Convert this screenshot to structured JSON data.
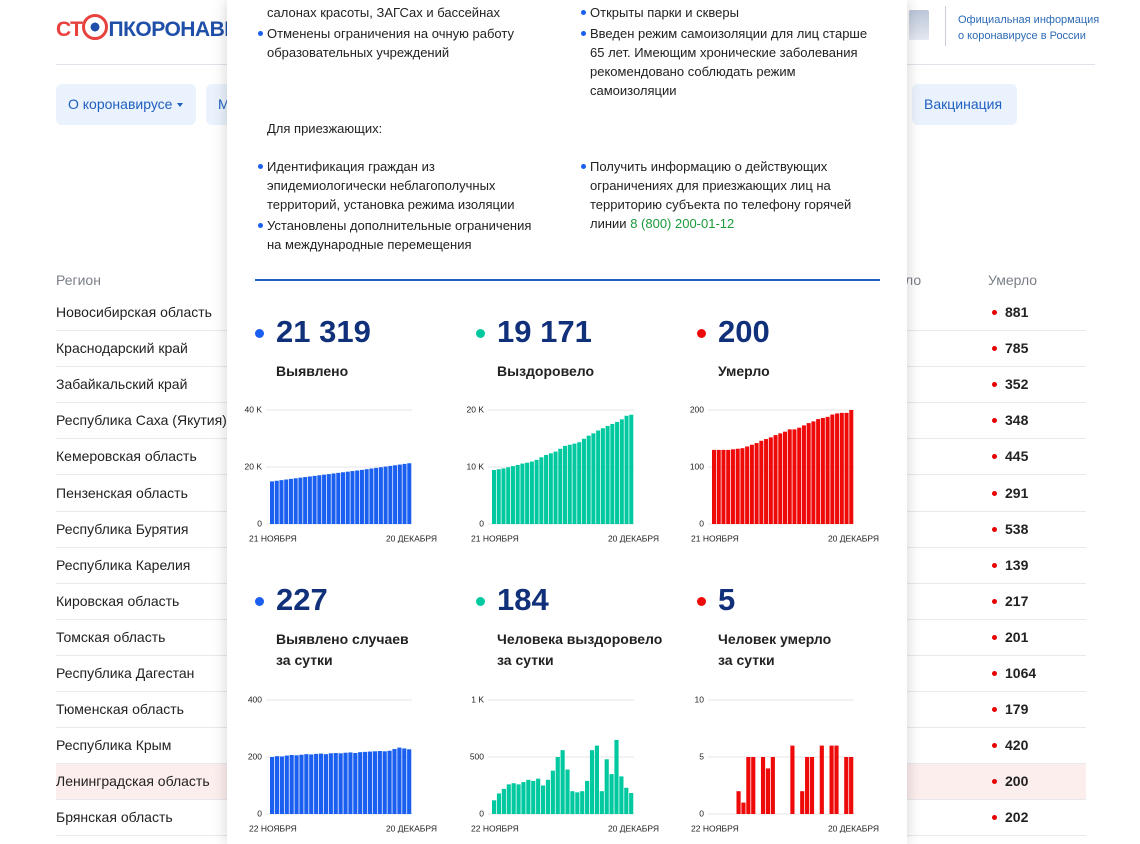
{
  "header": {
    "logo_left": "СТ",
    "logo_right": "ПКОРОНАВИ",
    "official": "Официальная информация\nо коронавирусе в России"
  },
  "nav": [
    "О коронавирусе",
    "М",
    "Вакцинация"
  ],
  "table": {
    "headers": [
      "Регион",
      "ло",
      "Умерло"
    ],
    "rows": [
      [
        "Новосибирская область",
        "881"
      ],
      [
        "Краснодарский край",
        "785"
      ],
      [
        "Забайкальский край",
        "352"
      ],
      [
        "Республика Саха (Якутия)",
        "348"
      ],
      [
        "Кемеровская область",
        "445"
      ],
      [
        "Пензенская область",
        "291"
      ],
      [
        "Республика Бурятия",
        "538"
      ],
      [
        "Республика Карелия",
        "139"
      ],
      [
        "Кировская область",
        "217"
      ],
      [
        "Томская область",
        "201"
      ],
      [
        "Республика Дагестан",
        "1064"
      ],
      [
        "Тюменская область",
        "179"
      ],
      [
        "Республика Крым",
        "420"
      ],
      [
        "Ленинградская область",
        "200"
      ],
      [
        "Брянская область",
        "202"
      ]
    ],
    "highlighted_row": 13
  },
  "popup": {
    "left_items": [
      {
        "text": "салонах красоты, ЗАГСах и бассейнах"
      },
      {
        "text": "Отменены ограничения на очную работу образовательных учреждений"
      }
    ],
    "right_items": [
      {
        "text": "Открыты парки и скверы"
      },
      {
        "text": "Введен режим самоизоляции для лиц старше 65 лет. Имеющим хронические заболевания рекомендовано соблюдать режим самоизоляции"
      }
    ],
    "arrivals_title": "Для приезжающих:",
    "arrivals_left": [
      "Идентификация граждан из эпидемиологически неблагополучных территорий, установка режима изоляции",
      "Установлены дополнительные ограничения на международные перемещения"
    ],
    "arrivals_right": {
      "text": "Получить информацию о действующих ограничениях для приезжающих лиц на территорию субъекта по телефону горячей линии",
      "phone": "8 (800) 200-01-12"
    },
    "stats": [
      {
        "value": "21 319",
        "label": "Выявлено",
        "color": "#1a5ff0"
      },
      {
        "value": "19 171",
        "label": "Выздоровело",
        "color": "#00c9a0"
      },
      {
        "value": "200",
        "label": "Умерло",
        "color": "#ef0a0a"
      },
      {
        "value": "227",
        "label": "Выявлено случаев\nза сутки",
        "color": "#1a5ff0"
      },
      {
        "value": "184",
        "label": "Человека выздоровело\nза сутки",
        "color": "#00c9a0"
      },
      {
        "value": "5",
        "label": "Человек умерло\nза сутки",
        "color": "#ef0a0a"
      }
    ]
  },
  "chart_data": [
    {
      "type": "bar",
      "color": "#1a5ff0",
      "categories": [
        "21 НОЯБРЯ",
        null,
        null,
        null,
        null,
        null,
        null,
        null,
        null,
        null,
        null,
        null,
        null,
        null,
        null,
        null,
        null,
        null,
        null,
        null,
        null,
        null,
        null,
        null,
        null,
        null,
        null,
        null,
        null,
        "20 ДЕКАБРЯ"
      ],
      "values": [
        14950,
        15170,
        15390,
        15610,
        15830,
        16050,
        16260,
        16470,
        16680,
        16890,
        17100,
        17310,
        17520,
        17730,
        17940,
        18150,
        18360,
        18570,
        18780,
        18990,
        19230,
        19460,
        19690,
        19920,
        20150,
        20380,
        20610,
        20850,
        21092,
        21319
      ],
      "ylim": [
        0,
        40000
      ],
      "yticks": [
        0,
        {
          "value": 20000,
          "label": "20 K"
        },
        {
          "value": 40000,
          "label": "40 K"
        }
      ],
      "grid": true
    },
    {
      "type": "bar",
      "color": "#00c9a0",
      "categories": [
        "21 НОЯБРЯ",
        null,
        null,
        null,
        null,
        null,
        null,
        null,
        null,
        null,
        null,
        null,
        null,
        null,
        null,
        null,
        null,
        null,
        null,
        null,
        null,
        null,
        null,
        null,
        null,
        null,
        null,
        null,
        null,
        "20 ДЕКАБРЯ"
      ],
      "values": [
        9480,
        9600,
        9750,
        9950,
        10150,
        10350,
        10600,
        10750,
        10950,
        11250,
        11700,
        12100,
        12400,
        12700,
        13200,
        13700,
        13900,
        14100,
        14350,
        14950,
        15500,
        15900,
        16400,
        16800,
        17200,
        17550,
        17900,
        18350,
        18987,
        19171
      ],
      "ylim": [
        0,
        20000
      ],
      "yticks": [
        0,
        {
          "value": 10000,
          "label": "10 K"
        },
        {
          "value": 20000,
          "label": "20 K"
        }
      ],
      "grid": true
    },
    {
      "type": "bar",
      "color": "#ef0a0a",
      "categories": [
        "21 НОЯБРЯ",
        null,
        null,
        null,
        null,
        null,
        null,
        null,
        null,
        null,
        null,
        null,
        null,
        null,
        null,
        null,
        null,
        null,
        null,
        null,
        null,
        null,
        null,
        null,
        null,
        null,
        null,
        null,
        null,
        "20 ДЕКАБРЯ"
      ],
      "values": [
        130,
        130,
        130,
        130,
        131,
        132,
        133,
        136,
        139,
        142,
        146,
        149,
        152,
        156,
        159,
        162,
        166,
        166,
        169,
        173,
        177,
        180,
        184,
        186,
        188,
        192,
        194,
        195,
        195,
        200
      ],
      "ylim": [
        0,
        200
      ],
      "yticks": [
        0,
        100,
        200
      ],
      "grid": true
    },
    {
      "type": "bar",
      "color": "#1a5ff0",
      "categories": [
        "22 НОЯБРЯ",
        null,
        null,
        null,
        null,
        null,
        null,
        null,
        null,
        null,
        null,
        null,
        null,
        null,
        null,
        null,
        null,
        null,
        null,
        null,
        null,
        null,
        null,
        null,
        null,
        null,
        null,
        null,
        "20 ДЕКАБРЯ"
      ],
      "values": [
        200,
        203,
        202,
        205,
        207,
        206,
        208,
        210,
        209,
        211,
        212,
        210,
        213,
        214,
        213,
        215,
        216,
        214,
        217,
        218,
        219,
        220,
        221,
        220,
        222,
        228,
        233,
        230,
        227
      ],
      "ylim": [
        0,
        400
      ],
      "yticks": [
        0,
        200,
        400
      ],
      "grid": true
    },
    {
      "type": "bar",
      "color": "#00c9a0",
      "categories": [
        "22 НОЯБРЯ",
        null,
        null,
        null,
        null,
        null,
        null,
        null,
        null,
        null,
        null,
        null,
        null,
        null,
        null,
        null,
        null,
        null,
        null,
        null,
        null,
        null,
        null,
        null,
        null,
        null,
        null,
        null,
        "20 ДЕКАБРЯ"
      ],
      "values": [
        120,
        180,
        220,
        260,
        270,
        260,
        280,
        300,
        290,
        310,
        250,
        300,
        380,
        500,
        560,
        390,
        200,
        190,
        200,
        290,
        560,
        600,
        200,
        480,
        350,
        650,
        330,
        230,
        184
      ],
      "ylim": [
        0,
        1000
      ],
      "yticks": [
        0,
        500,
        {
          "value": 1000,
          "label": "1 K"
        }
      ],
      "grid": true
    },
    {
      "type": "bar",
      "color": "#ef0a0a",
      "categories": [
        "22 НОЯБРЯ",
        null,
        null,
        null,
        null,
        null,
        null,
        null,
        null,
        null,
        null,
        null,
        null,
        null,
        null,
        null,
        null,
        null,
        null,
        null,
        null,
        null,
        null,
        null,
        null,
        null,
        null,
        null,
        "20 ДЕКАБРЯ"
      ],
      "values": [
        0,
        0,
        0,
        0,
        0,
        2,
        1,
        5,
        5,
        0,
        5,
        4,
        5,
        0,
        0,
        0,
        6,
        0,
        2,
        5,
        5,
        0,
        6,
        0,
        6,
        6,
        0,
        5,
        5
      ],
      "ylim": [
        0,
        10
      ],
      "yticks": [
        0,
        5,
        10
      ],
      "grid": true
    }
  ]
}
